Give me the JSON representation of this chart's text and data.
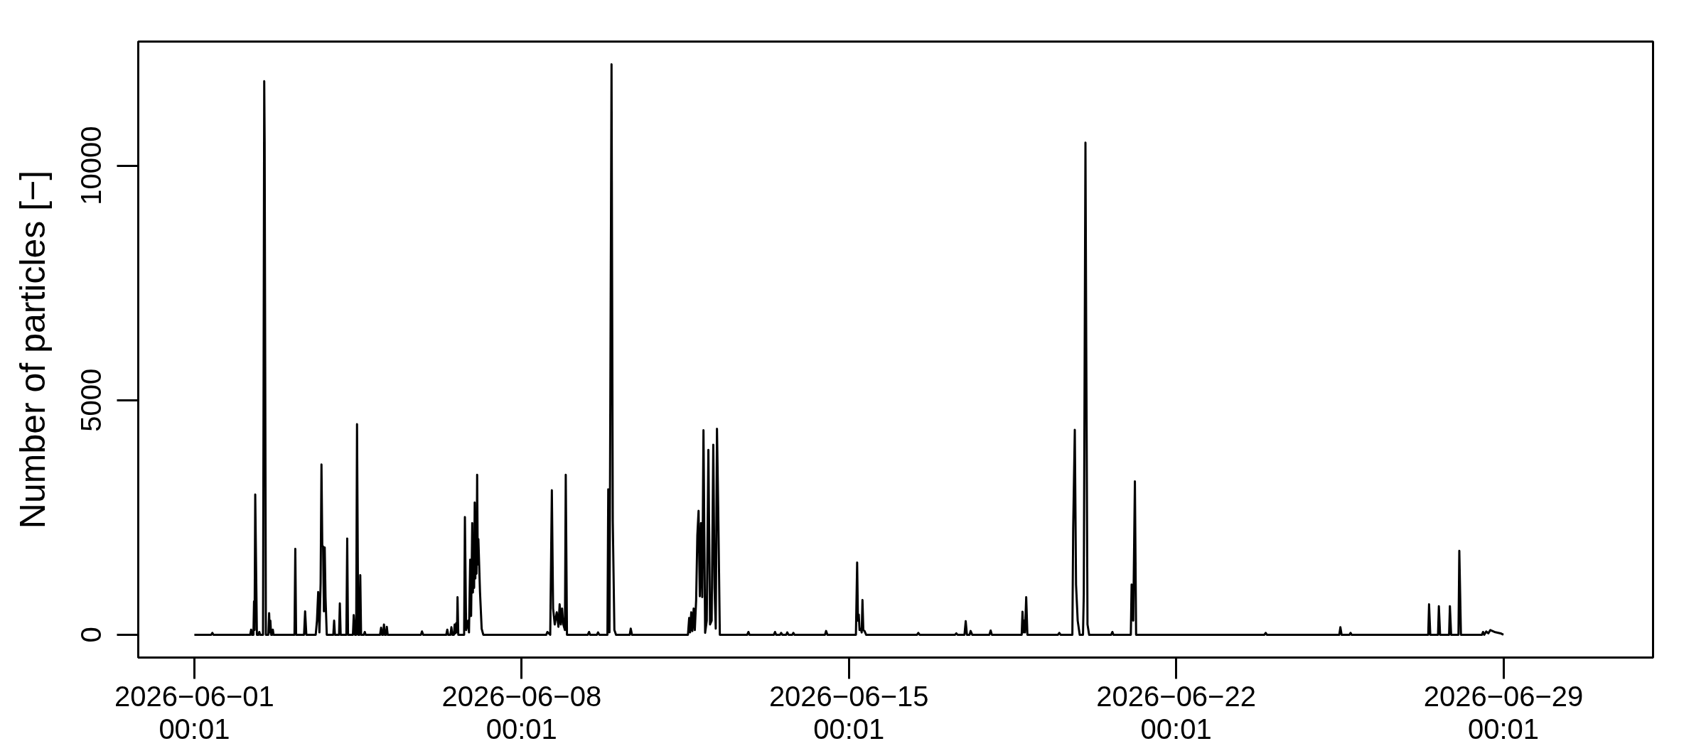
{
  "chart_data": {
    "type": "line",
    "ylabel": "Number of particles [−]",
    "xlim": [
      "2026-05-30T19:13",
      "2026-07-02T04:49"
    ],
    "xticks": [
      {
        "value": "2026-06-01T00:01",
        "label": "2026−06−01\n00:01"
      },
      {
        "value": "2026-06-08T00:01",
        "label": "2026−06−08\n00:01"
      },
      {
        "value": "2026-06-15T00:01",
        "label": "2026−06−15\n00:01"
      },
      {
        "value": "2026-06-22T00:01",
        "label": "2026−06−22\n00:01"
      },
      {
        "value": "2026-06-29T00:01",
        "label": "2026−06−29\n00:01"
      }
    ],
    "ylim": [
      -486,
      12646
    ],
    "yticks": [
      0,
      5000,
      10000
    ],
    "grid": false,
    "line_style": "solid",
    "x": [
      "2026-06-01T00:01",
      "2026-06-01T08:40",
      "2026-06-01T09:15",
      "2026-06-01T09:50",
      "2026-06-02T04:40",
      "2026-06-02T05:11",
      "2026-06-02T05:30",
      "2026-06-02T06:20",
      "2026-06-02T06:39",
      "2026-06-02T06:55",
      "2026-06-02T07:16",
      "2026-06-02T08:07",
      "2026-06-02T09:00",
      "2026-06-02T09:22",
      "2026-06-02T09:45",
      "2026-06-02T11:16",
      "2026-06-02T11:53",
      "2026-06-02T12:06",
      "2026-06-02T12:44",
      "2026-06-02T14:00",
      "2026-06-02T14:24",
      "2026-06-02T14:45",
      "2026-06-02T15:02",
      "2026-06-02T15:25",
      "2026-06-02T16:00",
      "2026-06-02T16:18",
      "2026-06-02T16:40",
      "2026-06-03T03:25",
      "2026-06-03T03:50",
      "2026-06-03T04:15",
      "2026-06-03T08:20",
      "2026-06-03T08:52",
      "2026-06-03T09:30",
      "2026-06-03T14:19",
      "2026-06-03T14:57",
      "2026-06-03T15:35",
      "2026-06-03T16:13",
      "2026-06-03T16:50",
      "2026-06-03T17:16",
      "2026-06-03T17:41",
      "2026-06-03T18:06",
      "2026-06-03T18:31",
      "2026-06-03T18:56",
      "2026-06-03T19:21",
      "2026-06-03T19:59",
      "2026-06-03T23:21",
      "2026-06-03T23:46",
      "2026-06-04T00:11",
      "2026-06-04T02:17",
      "2026-06-04T02:42",
      "2026-06-04T03:07",
      "2026-06-04T06:03",
      "2026-06-04T06:29",
      "2026-06-04T06:54",
      "2026-06-04T09:25",
      "2026-06-04T09:50",
      "2026-06-04T10:28",
      "2026-06-04T11:05",
      "2026-06-04T11:31",
      "2026-06-04T12:08",
      "2026-06-04T12:46",
      "2026-06-04T13:11",
      "2026-06-04T13:36",
      "2026-06-04T15:00",
      "2026-06-04T15:30",
      "2026-06-04T15:55",
      "2026-06-04T23:20",
      "2026-06-04T23:53",
      "2026-06-05T00:20",
      "2026-06-05T00:55",
      "2026-06-05T01:21",
      "2026-06-05T01:45",
      "2026-06-05T02:25",
      "2026-06-05T02:49",
      "2026-06-05T03:15",
      "2026-06-05T20:20",
      "2026-06-05T20:52",
      "2026-06-05T21:30",
      "2026-06-06T09:20",
      "2026-06-06T09:52",
      "2026-06-06T10:20",
      "2026-06-06T11:30",
      "2026-06-06T11:58",
      "2026-06-06T12:25",
      "2026-06-06T13:15",
      "2026-06-06T13:39",
      "2026-06-06T14:00",
      "2026-06-06T14:29",
      "2026-06-06T14:50",
      "2026-06-06T15:07",
      "2026-06-06T15:30",
      "2026-06-06T18:30",
      "2026-06-06T18:54",
      "2026-06-06T19:31",
      "2026-06-06T20:34",
      "2026-06-06T21:00",
      "2026-06-06T21:37",
      "2026-06-06T22:05",
      "2026-06-06T22:40",
      "2026-06-06T23:00",
      "2026-06-06T23:18",
      "2026-06-06T23:38",
      "2026-06-06T23:56",
      "2026-06-07T00:15",
      "2026-06-07T00:33",
      "2026-06-07T00:52",
      "2026-06-07T01:11",
      "2026-06-07T01:30",
      "2026-06-07T01:49",
      "2026-06-07T02:39",
      "2026-06-07T03:30",
      "2026-06-07T04:20",
      "2026-06-08T12:40",
      "2026-06-08T13:14",
      "2026-06-08T14:42",
      "2026-06-08T15:32",
      "2026-06-08T16:10",
      "2026-06-08T17:01",
      "2026-06-08T18:03",
      "2026-06-08T18:54",
      "2026-06-08T19:32",
      "2026-06-08T20:09",
      "2026-06-08T20:47",
      "2026-06-08T21:25",
      "2026-06-08T22:15",
      "2026-06-08T22:40",
      "2026-06-08T23:18",
      "2026-06-09T10:00",
      "2026-06-09T10:38",
      "2026-06-09T11:10",
      "2026-06-09T14:40",
      "2026-06-09T15:15",
      "2026-06-09T15:53",
      "2026-06-09T20:04",
      "2026-06-09T20:29",
      "2026-06-09T21:07",
      "2026-06-09T22:10",
      "2026-06-09T22:48",
      "2026-06-09T23:38",
      "2026-06-10T00:29",
      "2026-06-10T07:30",
      "2026-06-10T08:02",
      "2026-06-10T08:39",
      "2026-06-11T13:24",
      "2026-06-11T14:02",
      "2026-06-11T14:30",
      "2026-06-11T15:05",
      "2026-06-11T15:40",
      "2026-06-11T16:20",
      "2026-06-11T16:55",
      "2026-06-11T17:36",
      "2026-06-11T18:13",
      "2026-06-11T18:51",
      "2026-06-11T19:29",
      "2026-06-11T20:07",
      "2026-06-11T20:44",
      "2026-06-11T21:22",
      "2026-06-11T22:13",
      "2026-06-11T23:03",
      "2026-06-11T23:53",
      "2026-06-12T00:44",
      "2026-06-12T01:34",
      "2026-06-12T02:24",
      "2026-06-12T03:02",
      "2026-06-12T03:40",
      "2026-06-12T04:18",
      "2026-06-12T04:55",
      "2026-06-12T05:46",
      "2026-06-12T19:50",
      "2026-06-12T20:27",
      "2026-06-12T21:00",
      "2026-06-13T09:30",
      "2026-06-13T10:05",
      "2026-06-13T10:40",
      "2026-06-13T12:40",
      "2026-06-13T13:14",
      "2026-06-13T13:50",
      "2026-06-13T15:50",
      "2026-06-13T16:23",
      "2026-06-13T17:00",
      "2026-06-13T19:00",
      "2026-06-13T19:31",
      "2026-06-13T20:05",
      "2026-06-14T11:45",
      "2026-06-14T12:18",
      "2026-06-14T13:00",
      "2026-06-15T03:37",
      "2026-06-15T04:15",
      "2026-06-15T04:40",
      "2026-06-15T05:05",
      "2026-06-15T05:30",
      "2026-06-15T06:08",
      "2026-06-15T06:35",
      "2026-06-15T06:59",
      "2026-06-15T07:25",
      "2026-06-15T08:02",
      "2026-06-15T08:52",
      "2026-06-16T11:00",
      "2026-06-16T11:39",
      "2026-06-16T12:20",
      "2026-06-17T06:30",
      "2026-06-17T07:09",
      "2026-06-17T07:50",
      "2026-06-17T11:21",
      "2026-06-17T11:59",
      "2026-06-17T12:36",
      "2026-06-17T14:00",
      "2026-06-17T14:30",
      "2026-06-17T15:20",
      "2026-06-18T00:10",
      "2026-06-18T00:47",
      "2026-06-18T01:24",
      "2026-06-18T16:43",
      "2026-06-18T17:08",
      "2026-06-18T17:35",
      "2026-06-18T17:59",
      "2026-06-18T18:25",
      "2026-06-18T19:02",
      "2026-06-18T19:39",
      "2026-06-19T11:20",
      "2026-06-19T12:01",
      "2026-06-19T12:40",
      "2026-06-19T18:44",
      "2026-06-19T19:09",
      "2026-06-19T19:59",
      "2026-06-19T20:37",
      "2026-06-19T21:28",
      "2026-06-19T22:30",
      "2026-06-20T00:11",
      "2026-06-20T00:36",
      "2026-06-20T01:27",
      "2026-06-20T01:52",
      "2026-06-20T02:30",
      "2026-06-20T03:20",
      "2026-06-20T14:40",
      "2026-06-20T15:17",
      "2026-06-20T15:50",
      "2026-06-21T00:44",
      "2026-06-21T01:09",
      "2026-06-21T01:59",
      "2026-06-21T02:50",
      "2026-06-21T03:27",
      "2026-06-23T21:20",
      "2026-06-23T21:58",
      "2026-06-23T22:35",
      "2026-06-25T11:45",
      "2026-06-25T12:19",
      "2026-06-25T12:57",
      "2026-06-25T17:00",
      "2026-06-25T17:33",
      "2026-06-25T18:05",
      "2026-06-27T09:25",
      "2026-06-27T09:50",
      "2026-06-27T10:28",
      "2026-06-27T14:27",
      "2026-06-27T14:52",
      "2026-06-27T15:30",
      "2026-06-27T20:07",
      "2026-06-27T20:32",
      "2026-06-27T21:10",
      "2026-06-28T00:56",
      "2026-06-28T01:22",
      "2026-06-28T02:12",
      "2026-06-28T13:00",
      "2026-06-28T13:32",
      "2026-06-28T14:10",
      "2026-06-28T15:12",
      "2026-06-28T16:15",
      "2026-06-28T17:18",
      "2026-06-28T19:24",
      "2026-06-28T22:33",
      "2026-06-29T00:01"
    ],
    "series": [
      {
        "color": "#000000",
        "values": [
          0,
          0,
          40,
          0,
          0,
          110,
          0,
          0,
          710,
          100,
          2990,
          0,
          0,
          60,
          0,
          0,
          11800,
          10490,
          0,
          0,
          460,
          50,
          300,
          0,
          0,
          110,
          0,
          0,
          1830,
          0,
          0,
          500,
          0,
          0,
          300,
          910,
          50,
          1100,
          3630,
          1900,
          1880,
          500,
          1860,
          800,
          0,
          0,
          300,
          0,
          0,
          670,
          0,
          0,
          2050,
          0,
          0,
          420,
          0,
          0,
          4490,
          0,
          0,
          1270,
          0,
          0,
          60,
          0,
          0,
          150,
          0,
          0,
          220,
          0,
          0,
          170,
          0,
          0,
          70,
          0,
          0,
          110,
          0,
          0,
          160,
          0,
          0,
          220,
          30,
          250,
          50,
          800,
          0,
          0,
          2510,
          100,
          300,
          50,
          1600,
          400,
          2380,
          900,
          2080,
          1000,
          2820,
          1200,
          2040,
          1300,
          3410,
          1500,
          2040,
          910,
          130,
          0,
          0,
          60,
          0,
          3080,
          560,
          220,
          480,
          170,
          650,
          220,
          560,
          220,
          100,
          3410,
          0,
          0,
          60,
          0,
          0,
          50,
          0,
          0,
          3100,
          50,
          12160,
          2430,
          100,
          0,
          0,
          130,
          0,
          0,
          360,
          50,
          480,
          80,
          560,
          100,
          740,
          2120,
          2640,
          820,
          2380,
          800,
          4360,
          40,
          300,
          3940,
          220,
          300,
          4050,
          1000,
          130,
          4390,
          2730,
          0,
          0,
          60,
          0,
          0,
          60,
          0,
          0,
          40,
          0,
          0,
          50,
          0,
          0,
          40,
          0,
          0,
          80,
          0,
          0,
          1540,
          300,
          430,
          100,
          130,
          50,
          740,
          100,
          80,
          0,
          0,
          40,
          0,
          0,
          30,
          0,
          0,
          290,
          0,
          0,
          80,
          0,
          0,
          90,
          0,
          0,
          490,
          50,
          300,
          50,
          800,
          0,
          0,
          40,
          0,
          0,
          2250,
          4370,
          1070,
          300,
          0,
          0,
          870,
          10490,
          6110,
          220,
          0,
          0,
          60,
          0,
          0,
          1070,
          300,
          3270,
          0,
          0,
          40,
          0,
          0,
          160,
          0,
          0,
          40,
          0,
          0,
          650,
          0,
          0,
          610,
          0,
          0,
          610,
          0,
          0,
          1790,
          0,
          0,
          60,
          0,
          70,
          30,
          100,
          60,
          30,
          0
        ]
      }
    ]
  }
}
